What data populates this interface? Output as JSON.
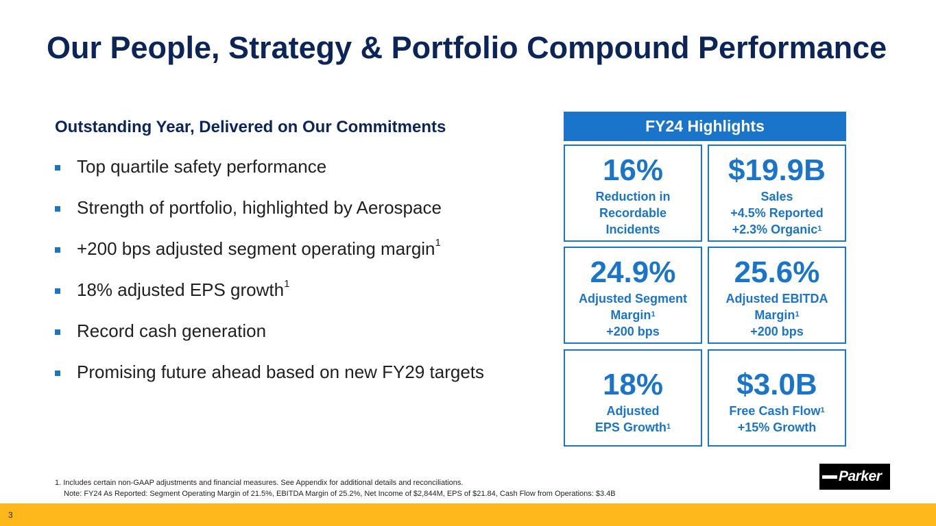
{
  "title": "Our People, Strategy & Portfolio Compound Performance",
  "subhead": "Outstanding Year, Delivered on Our Commitments",
  "bullets": [
    {
      "text": "Top quartile safety performance",
      "sup": ""
    },
    {
      "text": "Strength of portfolio, highlighted by Aerospace",
      "sup": ""
    },
    {
      "text": "+200 bps adjusted segment operating margin",
      "sup": "1"
    },
    {
      "text": "18% adjusted EPS growth",
      "sup": "1"
    },
    {
      "text": "Record cash generation",
      "sup": ""
    },
    {
      "text": "Promising future ahead based on new FY29 targets",
      "sup": ""
    }
  ],
  "highlights": {
    "header": "FY24 Highlights",
    "cards": [
      {
        "value": "16%",
        "lines": [
          "Reduction in",
          "Recordable",
          "Incidents"
        ]
      },
      {
        "value": "$19.9B",
        "lines": [
          "Sales",
          "+4.5% Reported",
          "+2.3% Organic"
        ],
        "sup2": "1"
      },
      {
        "value": "24.9%",
        "lines": [
          "Adjusted Segment",
          "Margin",
          "+200 bps"
        ],
        "sup1": "1"
      },
      {
        "value": "25.6%",
        "lines": [
          "Adjusted EBITDA",
          "Margin",
          "+200 bps"
        ],
        "sup1": "1"
      },
      {
        "value": "18%",
        "lines": [
          "Adjusted",
          "EPS Growth"
        ],
        "sup1": "1"
      },
      {
        "value": "$3.0B",
        "lines": [
          "Free Cash Flow",
          "+15% Growth"
        ],
        "sup0": "1"
      }
    ]
  },
  "footnotes": {
    "fn1": "1. Includes certain non-GAAP adjustments and financial measures. See Appendix for additional details and reconciliations.",
    "note": "Note: FY24 As Reported: Segment Operating Margin of 21.5%, EBITDA Margin of 25.2%, Net Income of $2,844M, EPS of $21.84, Cash Flow from Operations: $3.4B"
  },
  "logo": {
    "word": "Parker"
  },
  "page_number": "3",
  "colors": {
    "navy": "#0b2559",
    "blue": "#1a74c9",
    "gold": "#ffb81c"
  }
}
